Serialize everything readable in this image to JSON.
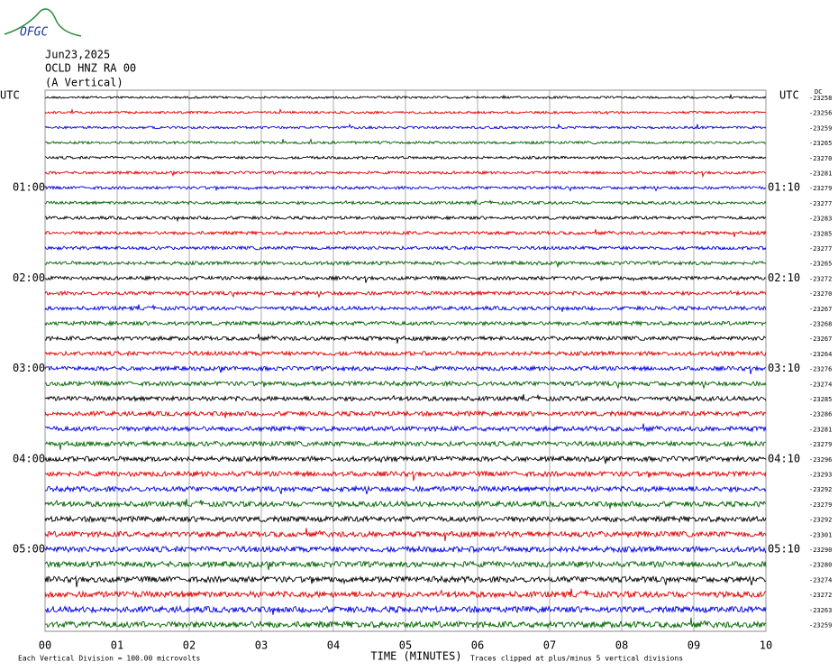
{
  "header": {
    "logo": "OFGC",
    "date": "Jun23,2025",
    "station": "OCLD HNZ RA 00",
    "component": "(A Vertical)"
  },
  "chart_data": {
    "type": "helicorder",
    "left_axis_title": "UTC",
    "right_axis_title": "UTC",
    "right_column_title": "DC",
    "left_hour_labels": [
      "01:00",
      "02:00",
      "03:00",
      "04:00",
      "05:00"
    ],
    "right_hour_labels": [
      "01:10",
      "02:10",
      "03:10",
      "04:10",
      "05:10"
    ],
    "colors": [
      "#000000",
      "#e00000",
      "#0000e0",
      "#006400"
    ],
    "trace_offsets": [
      -23258,
      -23256,
      -23259,
      -23265,
      -23270,
      -23281,
      -23279,
      -23277,
      -23283,
      -23285,
      -23277,
      -23265,
      -23272,
      -23270,
      -23267,
      -23268,
      -23267,
      -23264,
      -23276,
      -23274,
      -23285,
      -23286,
      -23281,
      -23279,
      -23296,
      -23293,
      -23292,
      -23279,
      -23292,
      -23301,
      -23290,
      -23280,
      -23274,
      -23272,
      -23263,
      -23259
    ],
    "xlim": [
      0,
      10
    ],
    "xticks": [
      {
        "value": 0,
        "label": "00"
      },
      {
        "value": 1,
        "label": "01"
      },
      {
        "value": 2,
        "label": "02"
      },
      {
        "value": 3,
        "label": "03"
      },
      {
        "value": 4,
        "label": "04"
      },
      {
        "value": 5,
        "label": "05"
      },
      {
        "value": 6,
        "label": "06"
      },
      {
        "value": 7,
        "label": "07"
      },
      {
        "value": 8,
        "label": "08"
      },
      {
        "value": 9,
        "label": "09"
      },
      {
        "value": 10,
        "label": "10"
      }
    ],
    "xlabel": "TIME (MINUTES)",
    "scale_note": "Each Vertical Division =  100.00 microvolts",
    "clip_note": "Traces clipped at plus/minus 5 vertical divisions"
  }
}
